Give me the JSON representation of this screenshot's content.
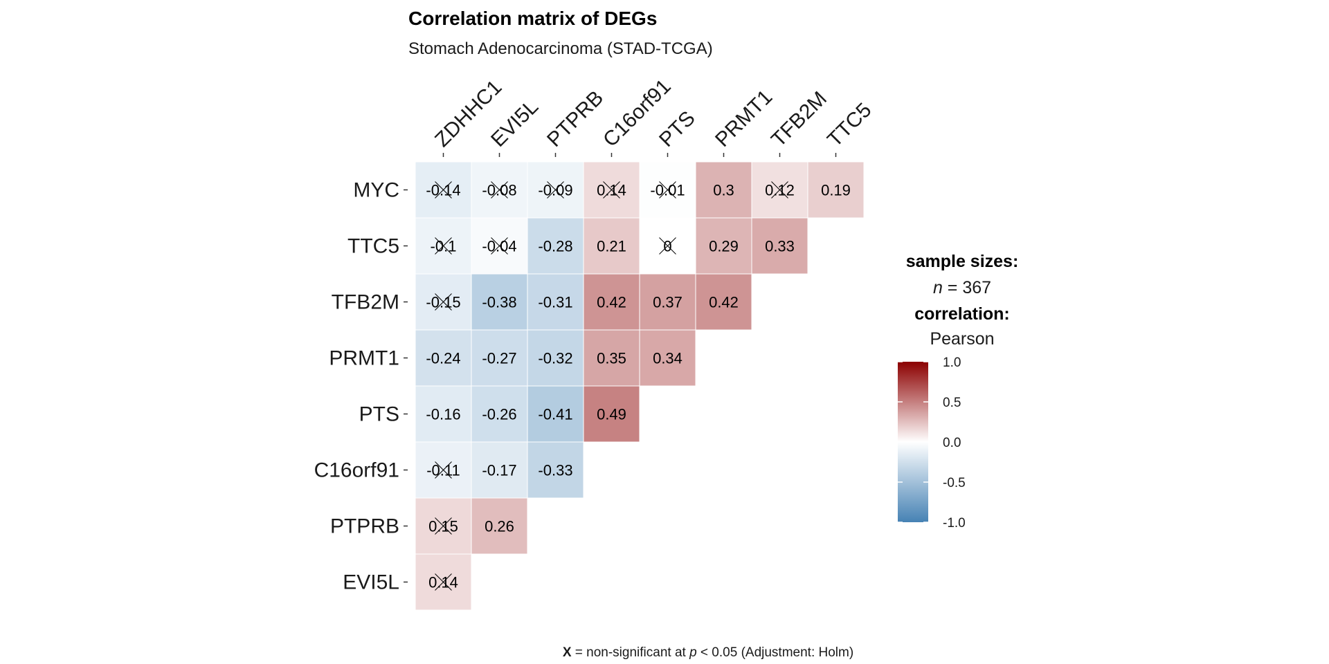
{
  "chart_data": {
    "type": "heatmap",
    "title": "Correlation matrix of DEGs",
    "subtitle": "Stomach Adenocarcinoma (STAD-TCGA)",
    "x_labels": [
      "ZDHHC1",
      "EVI5L",
      "PTPRB",
      "C16orf91",
      "PTS",
      "PRMT1",
      "TFB2M",
      "TTC5"
    ],
    "y_labels": [
      "MYC",
      "TTC5",
      "TFB2M",
      "PRMT1",
      "PTS",
      "C16orf91",
      "PTPRB",
      "EVI5L"
    ],
    "cells": [
      {
        "row": "MYC",
        "col": "ZDHHC1",
        "label": "-0.14",
        "value": -0.14,
        "nonsig": true
      },
      {
        "row": "MYC",
        "col": "EVI5L",
        "label": "-0.08",
        "value": -0.08,
        "nonsig": true
      },
      {
        "row": "MYC",
        "col": "PTPRB",
        "label": "-0.09",
        "value": -0.09,
        "nonsig": true
      },
      {
        "row": "MYC",
        "col": "C16orf91",
        "label": "0.14",
        "value": 0.14,
        "nonsig": true
      },
      {
        "row": "MYC",
        "col": "PTS",
        "label": "-0.01",
        "value": -0.01,
        "nonsig": true
      },
      {
        "row": "MYC",
        "col": "PRMT1",
        "label": "0.3",
        "value": 0.3,
        "nonsig": false
      },
      {
        "row": "MYC",
        "col": "TFB2M",
        "label": "0.12",
        "value": 0.12,
        "nonsig": true
      },
      {
        "row": "MYC",
        "col": "TTC5",
        "label": "0.19",
        "value": 0.19,
        "nonsig": false
      },
      {
        "row": "TTC5",
        "col": "ZDHHC1",
        "label": "-0.1",
        "value": -0.1,
        "nonsig": true
      },
      {
        "row": "TTC5",
        "col": "EVI5L",
        "label": "-0.04",
        "value": -0.04,
        "nonsig": true
      },
      {
        "row": "TTC5",
        "col": "PTPRB",
        "label": "-0.28",
        "value": -0.28,
        "nonsig": false
      },
      {
        "row": "TTC5",
        "col": "C16orf91",
        "label": "0.21",
        "value": 0.21,
        "nonsig": false
      },
      {
        "row": "TTC5",
        "col": "PTS",
        "label": "0",
        "value": 0,
        "nonsig": true
      },
      {
        "row": "TTC5",
        "col": "PRMT1",
        "label": "0.29",
        "value": 0.29,
        "nonsig": false
      },
      {
        "row": "TTC5",
        "col": "TFB2M",
        "label": "0.33",
        "value": 0.33,
        "nonsig": false
      },
      {
        "row": "TFB2M",
        "col": "ZDHHC1",
        "label": "-0.15",
        "value": -0.15,
        "nonsig": true
      },
      {
        "row": "TFB2M",
        "col": "EVI5L",
        "label": "-0.38",
        "value": -0.38,
        "nonsig": false
      },
      {
        "row": "TFB2M",
        "col": "PTPRB",
        "label": "-0.31",
        "value": -0.31,
        "nonsig": false
      },
      {
        "row": "TFB2M",
        "col": "C16orf91",
        "label": "0.42",
        "value": 0.42,
        "nonsig": false
      },
      {
        "row": "TFB2M",
        "col": "PTS",
        "label": "0.37",
        "value": 0.37,
        "nonsig": false
      },
      {
        "row": "TFB2M",
        "col": "PRMT1",
        "label": "0.42",
        "value": 0.42,
        "nonsig": false
      },
      {
        "row": "PRMT1",
        "col": "ZDHHC1",
        "label": "-0.24",
        "value": -0.24,
        "nonsig": false
      },
      {
        "row": "PRMT1",
        "col": "EVI5L",
        "label": "-0.27",
        "value": -0.27,
        "nonsig": false
      },
      {
        "row": "PRMT1",
        "col": "PTPRB",
        "label": "-0.32",
        "value": -0.32,
        "nonsig": false
      },
      {
        "row": "PRMT1",
        "col": "C16orf91",
        "label": "0.35",
        "value": 0.35,
        "nonsig": false
      },
      {
        "row": "PRMT1",
        "col": "PTS",
        "label": "0.34",
        "value": 0.34,
        "nonsig": false
      },
      {
        "row": "PTS",
        "col": "ZDHHC1",
        "label": "-0.16",
        "value": -0.16,
        "nonsig": false
      },
      {
        "row": "PTS",
        "col": "EVI5L",
        "label": "-0.26",
        "value": -0.26,
        "nonsig": false
      },
      {
        "row": "PTS",
        "col": "PTPRB",
        "label": "-0.41",
        "value": -0.41,
        "nonsig": false
      },
      {
        "row": "PTS",
        "col": "C16orf91",
        "label": "0.49",
        "value": 0.49,
        "nonsig": false
      },
      {
        "row": "C16orf91",
        "col": "ZDHHC1",
        "label": "-0.11",
        "value": -0.11,
        "nonsig": true
      },
      {
        "row": "C16orf91",
        "col": "EVI5L",
        "label": "-0.17",
        "value": -0.17,
        "nonsig": false
      },
      {
        "row": "C16orf91",
        "col": "PTPRB",
        "label": "-0.33",
        "value": -0.33,
        "nonsig": false
      },
      {
        "row": "PTPRB",
        "col": "ZDHHC1",
        "label": "0.15",
        "value": 0.15,
        "nonsig": true
      },
      {
        "row": "PTPRB",
        "col": "EVI5L",
        "label": "0.26",
        "value": 0.26,
        "nonsig": false
      },
      {
        "row": "EVI5L",
        "col": "ZDHHC1",
        "label": "0.14",
        "value": 0.14,
        "nonsig": true
      }
    ],
    "legend": {
      "heading_sample": "sample sizes:",
      "n_symbol": "n",
      "n_rest": " = 367",
      "heading_corr": "correlation:",
      "method": "Pearson",
      "ticks": [
        {
          "value": 1.0,
          "label": "1.0"
        },
        {
          "value": 0.5,
          "label": "0.5"
        },
        {
          "value": 0.0,
          "label": "0.0"
        },
        {
          "value": -0.5,
          "label": "-0.5"
        },
        {
          "value": -1.0,
          "label": "-1.0"
        }
      ],
      "range": [
        -1.0,
        1.0
      ],
      "colors": {
        "low": "#4682B4",
        "mid": "#FFFFFF",
        "high": "#8B0000"
      },
      "placement": "right"
    },
    "caption": {
      "x_symbol": "X",
      "part1": " = non-significant at ",
      "p_symbol": "p",
      "part2": " < 0.05 (Adjustment: Holm)"
    }
  }
}
